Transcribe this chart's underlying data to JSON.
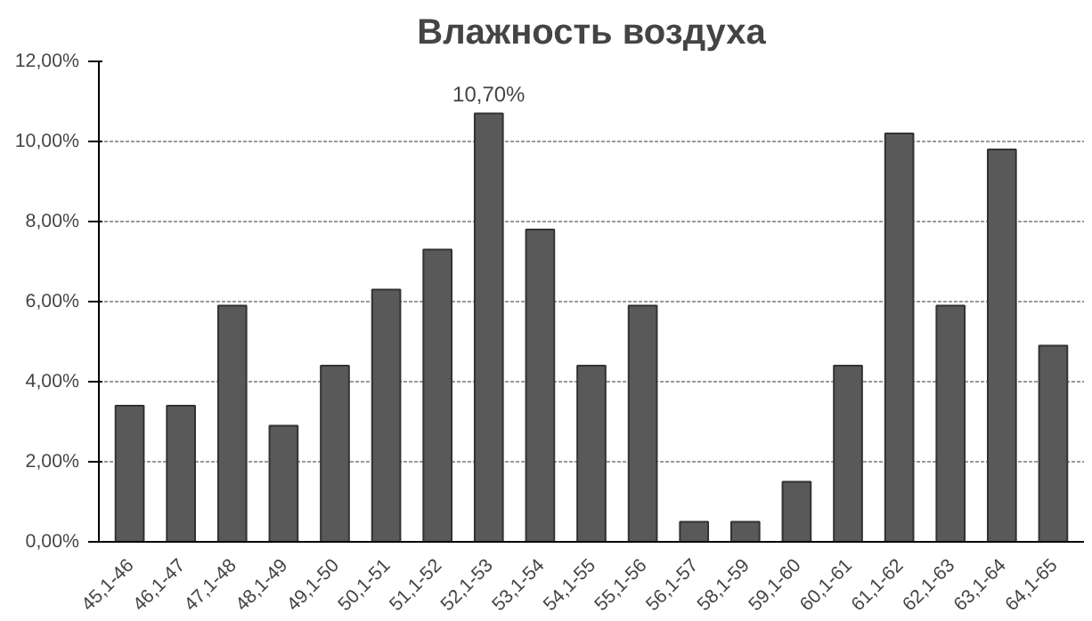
{
  "chart_data": {
    "type": "bar",
    "title": "Влажность воздуха",
    "categories": [
      "45,1-46",
      "46,1-47",
      "47,1-48",
      "48,1-49",
      "49,1-50",
      "50,1-51",
      "51,1-52",
      "52,1-53",
      "53,1-54",
      "54,1-55",
      "55,1-56",
      "56,1-57",
      "58,1-59",
      "59,1-60",
      "60,1-61",
      "61,1-62",
      "62,1-63",
      "63,1-64",
      "64,1-65"
    ],
    "values": [
      3.4,
      3.4,
      5.9,
      2.9,
      4.4,
      6.3,
      7.3,
      10.7,
      7.8,
      4.4,
      5.9,
      0.5,
      0.5,
      1.5,
      4.4,
      10.2,
      5.9,
      9.8,
      4.9
    ],
    "value_labels": [
      null,
      null,
      null,
      null,
      null,
      null,
      null,
      "10,70%",
      null,
      null,
      null,
      null,
      null,
      null,
      null,
      null,
      null,
      null,
      null
    ],
    "color": "#595959",
    "ylim": [
      0,
      12
    ],
    "yticks": [
      {
        "value": 0,
        "label": "0,00%"
      },
      {
        "value": 2,
        "label": "2,00%"
      },
      {
        "value": 4,
        "label": "4,00%"
      },
      {
        "value": 6,
        "label": "6,00%"
      },
      {
        "value": 8,
        "label": "8,00%"
      },
      {
        "value": 10,
        "label": "10,00%"
      },
      {
        "value": 12,
        "label": "12,00%"
      }
    ],
    "grid": "y"
  }
}
